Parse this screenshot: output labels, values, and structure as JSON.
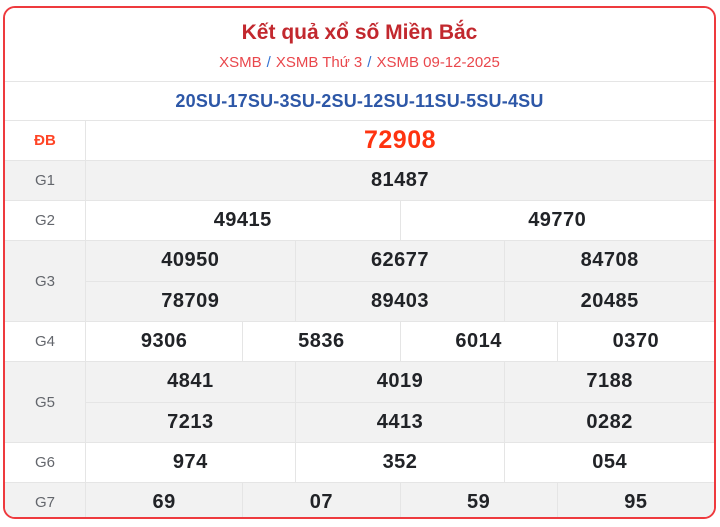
{
  "header": {
    "title": "Kết quả xổ số Miền Bắc",
    "breadcrumb": {
      "items": [
        "XSMB",
        "XSMB Thứ 3",
        "XSMB 09-12-2025"
      ],
      "separator": "/"
    }
  },
  "summary_line": "20SU-17SU-3SU-2SU-12SU-11SU-5SU-4SU",
  "results": {
    "rows": [
      {
        "label": "ĐB",
        "special": true,
        "lines": [
          [
            "72908"
          ]
        ]
      },
      {
        "label": "G1",
        "special": false,
        "lines": [
          [
            "81487"
          ]
        ]
      },
      {
        "label": "G2",
        "special": false,
        "lines": [
          [
            "49415",
            "49770"
          ]
        ]
      },
      {
        "label": "G3",
        "special": false,
        "lines": [
          [
            "40950",
            "62677",
            "84708"
          ],
          [
            "78709",
            "89403",
            "20485"
          ]
        ]
      },
      {
        "label": "G4",
        "special": false,
        "lines": [
          [
            "9306",
            "5836",
            "6014",
            "0370"
          ]
        ]
      },
      {
        "label": "G5",
        "special": false,
        "lines": [
          [
            "4841",
            "4019",
            "7188"
          ],
          [
            "7213",
            "4413",
            "0282"
          ]
        ]
      },
      {
        "label": "G6",
        "special": false,
        "lines": [
          [
            "974",
            "352",
            "054"
          ]
        ]
      },
      {
        "label": "G7",
        "special": false,
        "lines": [
          [
            "69",
            "07",
            "59",
            "95"
          ]
        ]
      }
    ]
  },
  "colors": {
    "title": "#c2282e",
    "breadcrumb_link": "#e9474c",
    "breadcrumb_separator": "#3473d2",
    "summary_text": "#2d57a7",
    "special_value": "#fe3310",
    "special_label": "#ff4526",
    "value_text": "#212327",
    "label_text": "#63666c",
    "row_alt_bg": "#f2f2f2",
    "cell_border": "#e5e5e5",
    "card_border": "#ee3a3e"
  }
}
